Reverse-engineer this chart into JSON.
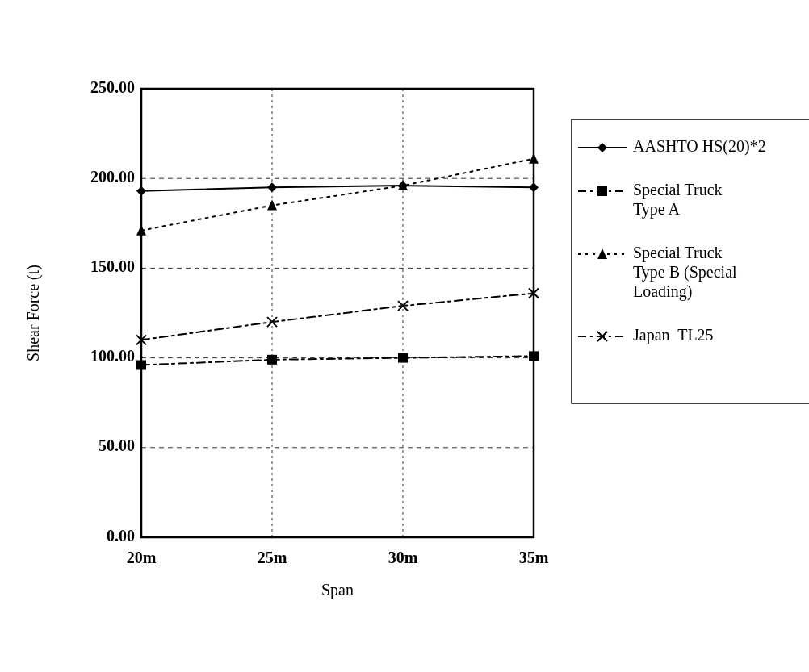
{
  "chart_data": {
    "type": "line",
    "xlabel": "Span",
    "ylabel": "Shear Force (t)",
    "categories": [
      "20m",
      "25m",
      "30m",
      "35m"
    ],
    "ylim": [
      0,
      250
    ],
    "yticks": [
      {
        "value": 0,
        "label": "0.00"
      },
      {
        "value": 50,
        "label": "50.00"
      },
      {
        "value": 100,
        "label": "100.00"
      },
      {
        "value": 150,
        "label": "150.00"
      },
      {
        "value": 200,
        "label": "200.00"
      },
      {
        "value": 250,
        "label": "250.00"
      }
    ],
    "grid": true,
    "legend": "right",
    "series": [
      {
        "name": "AASHTO HS(20)*2",
        "color": "#000000",
        "marker": "diamond",
        "line_style": "solid",
        "values": [
          193,
          195,
          196,
          195
        ]
      },
      {
        "name": "Special Truck Type A",
        "color": "#000000",
        "marker": "square",
        "line_style": "dashed",
        "values": [
          96,
          99,
          100,
          101
        ]
      },
      {
        "name": "Special Truck Type B (Special Loading)",
        "color": "#000000",
        "marker": "triangle",
        "line_style": "dotted",
        "values": [
          171,
          185,
          196,
          211
        ]
      },
      {
        "name": "Japan  TL25",
        "color": "#000000",
        "marker": "cross",
        "line_style": "dashed",
        "values": [
          110,
          120,
          129,
          136
        ]
      }
    ]
  }
}
